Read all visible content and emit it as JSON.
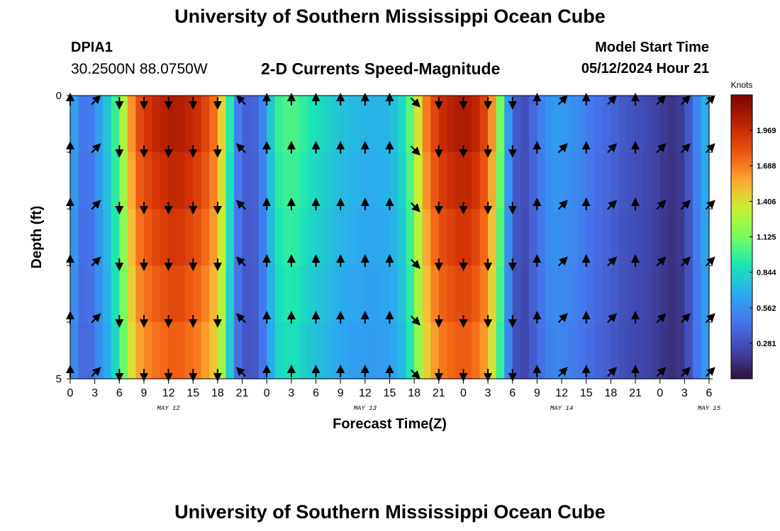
{
  "header": {
    "title": "University of Southern Mississippi Ocean Cube",
    "station": "DPIA1",
    "coords": "30.2500N  88.0750W",
    "subtitle": "2-D Currents Speed-Magnitude",
    "model_start_label": "Model Start Time",
    "model_start_value": "05/12/2024 Hour 21"
  },
  "footer": {
    "title": "University of Southern Mississippi Ocean Cube"
  },
  "chart_data": {
    "type": "heatmap",
    "title": "2-D Currents Speed-Magnitude",
    "xlabel": "Forecast Time(Z)",
    "ylabel": "Depth (ft)",
    "x_ticks": [
      "0",
      "3",
      "6",
      "9",
      "12",
      "15",
      "18",
      "21",
      "0",
      "3",
      "6",
      "9",
      "12",
      "15",
      "18",
      "21",
      "0",
      "3",
      "6",
      "9",
      "12",
      "15",
      "18",
      "21",
      "0",
      "3",
      "6"
    ],
    "date_labels": [
      {
        "label": "MAY 12",
        "hour": 12
      },
      {
        "label": "MAY 13",
        "hour": 36
      },
      {
        "label": "MAY 14",
        "hour": 60
      },
      {
        "label": "MAY 15",
        "hour": 78
      }
    ],
    "y_ticks": [
      "0",
      "5"
    ],
    "xlim_hours": [
      0,
      78
    ],
    "ylim_ft": [
      0,
      5
    ],
    "colorbar": {
      "unit": "Knots",
      "range": [
        0,
        2.25
      ],
      "ticks": [
        "1.969",
        "1.688",
        "1.406",
        "1.125",
        "0.844",
        "0.562",
        "0.281"
      ],
      "tick_values": [
        1.969,
        1.688,
        1.406,
        1.125,
        0.844,
        0.562,
        0.281
      ]
    },
    "depth_layers_ft": [
      0,
      1,
      2,
      3,
      4,
      5
    ],
    "speed_profile_knots": [
      [
        0,
        0.9
      ],
      [
        0.5,
        0.62
      ],
      [
        1,
        0.52
      ],
      [
        2,
        0.4
      ],
      [
        2.5,
        0.48
      ],
      [
        3,
        0.56
      ],
      [
        4,
        0.7
      ],
      [
        5,
        0.85
      ],
      [
        6,
        1.1
      ],
      [
        7,
        1.45
      ],
      [
        8,
        1.8
      ],
      [
        10,
        1.97
      ],
      [
        12,
        2.05
      ],
      [
        13,
        2.08
      ],
      [
        14,
        2.03
      ],
      [
        16,
        1.93
      ],
      [
        17,
        1.8
      ],
      [
        18,
        1.65
      ],
      [
        19,
        1.25
      ],
      [
        20,
        0.6
      ],
      [
        21,
        0.38
      ],
      [
        22,
        0.32
      ],
      [
        23,
        0.42
      ],
      [
        24,
        0.62
      ],
      [
        25,
        0.95
      ],
      [
        27,
        1.05
      ],
      [
        29,
        0.92
      ],
      [
        31,
        0.84
      ],
      [
        33,
        0.76
      ],
      [
        35,
        0.72
      ],
      [
        37,
        0.7
      ],
      [
        39,
        0.72
      ],
      [
        40,
        0.8
      ],
      [
        41,
        0.92
      ],
      [
        42,
        1.2
      ],
      [
        43,
        1.6
      ],
      [
        45,
        1.95
      ],
      [
        47,
        2.05
      ],
      [
        48,
        2.08
      ],
      [
        49,
        2.05
      ],
      [
        50,
        1.95
      ],
      [
        51,
        1.8
      ],
      [
        52,
        1.45
      ],
      [
        53,
        0.8
      ],
      [
        54,
        0.42
      ],
      [
        55,
        0.22
      ],
      [
        56,
        0.32
      ],
      [
        57,
        0.45
      ],
      [
        58,
        0.55
      ],
      [
        59,
        0.62
      ],
      [
        60,
        0.6
      ],
      [
        62,
        0.55
      ],
      [
        64,
        0.45
      ],
      [
        66,
        0.38
      ],
      [
        68,
        0.3
      ],
      [
        70,
        0.26
      ],
      [
        72,
        0.2
      ],
      [
        73,
        0.15
      ],
      [
        74,
        0.14
      ],
      [
        75,
        0.22
      ],
      [
        76,
        0.42
      ],
      [
        77,
        0.62
      ],
      [
        78,
        0.75
      ]
    ],
    "arrows": [
      {
        "hour": 0,
        "dir": "up"
      },
      {
        "hour": 3,
        "dir": "up-right"
      },
      {
        "hour": 6,
        "dir": "down"
      },
      {
        "hour": 9,
        "dir": "down"
      },
      {
        "hour": 12,
        "dir": "down"
      },
      {
        "hour": 15,
        "dir": "down"
      },
      {
        "hour": 18,
        "dir": "down"
      },
      {
        "hour": 21,
        "dir": "up-left"
      },
      {
        "hour": 24,
        "dir": "up"
      },
      {
        "hour": 27,
        "dir": "up"
      },
      {
        "hour": 30,
        "dir": "up"
      },
      {
        "hour": 33,
        "dir": "up"
      },
      {
        "hour": 36,
        "dir": "up"
      },
      {
        "hour": 39,
        "dir": "up"
      },
      {
        "hour": 42,
        "dir": "down-right"
      },
      {
        "hour": 45,
        "dir": "down"
      },
      {
        "hour": 48,
        "dir": "down"
      },
      {
        "hour": 51,
        "dir": "down"
      },
      {
        "hour": 54,
        "dir": "down"
      },
      {
        "hour": 57,
        "dir": "up"
      },
      {
        "hour": 60,
        "dir": "up-right"
      },
      {
        "hour": 63,
        "dir": "up"
      },
      {
        "hour": 66,
        "dir": "up-right"
      },
      {
        "hour": 69,
        "dir": "up"
      },
      {
        "hour": 72,
        "dir": "up-right"
      },
      {
        "hour": 75,
        "dir": "up-right"
      },
      {
        "hour": 78,
        "dir": "up-right"
      }
    ]
  }
}
